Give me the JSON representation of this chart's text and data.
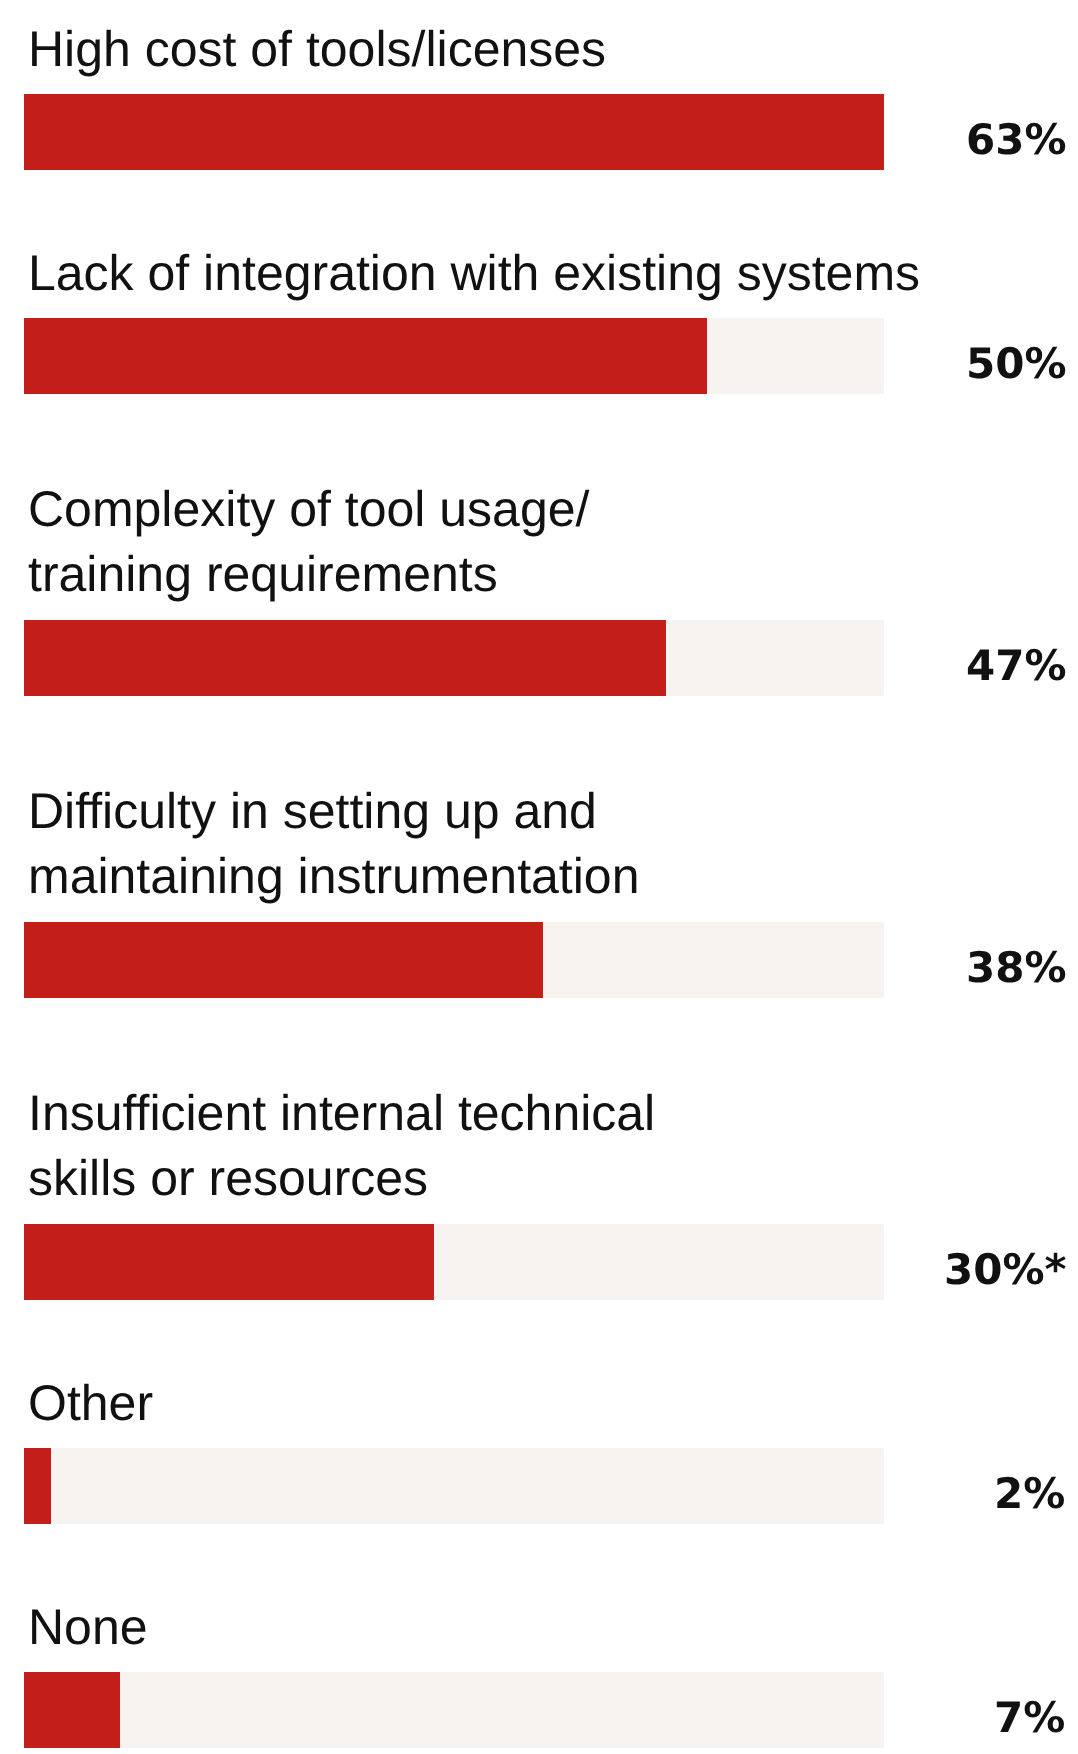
{
  "chart_data": {
    "type": "bar",
    "orientation": "horizontal",
    "categories": [
      "High cost of tools/licenses",
      "Lack of integration with existing systems",
      "Complexity of tool usage/\ntraining requirements",
      "Difficulty in setting up and\nmaintaining instrumentation",
      "Insufficient internal technical\nskills or resources",
      "Other",
      "None"
    ],
    "values": [
      63,
      50,
      47,
      38,
      30,
      2,
      7
    ],
    "value_labels": [
      "63%",
      "50%",
      "47%",
      "38%",
      "30%*",
      "2%",
      "7%"
    ],
    "color": "#c41e1a",
    "tick_labels": false
  }
}
